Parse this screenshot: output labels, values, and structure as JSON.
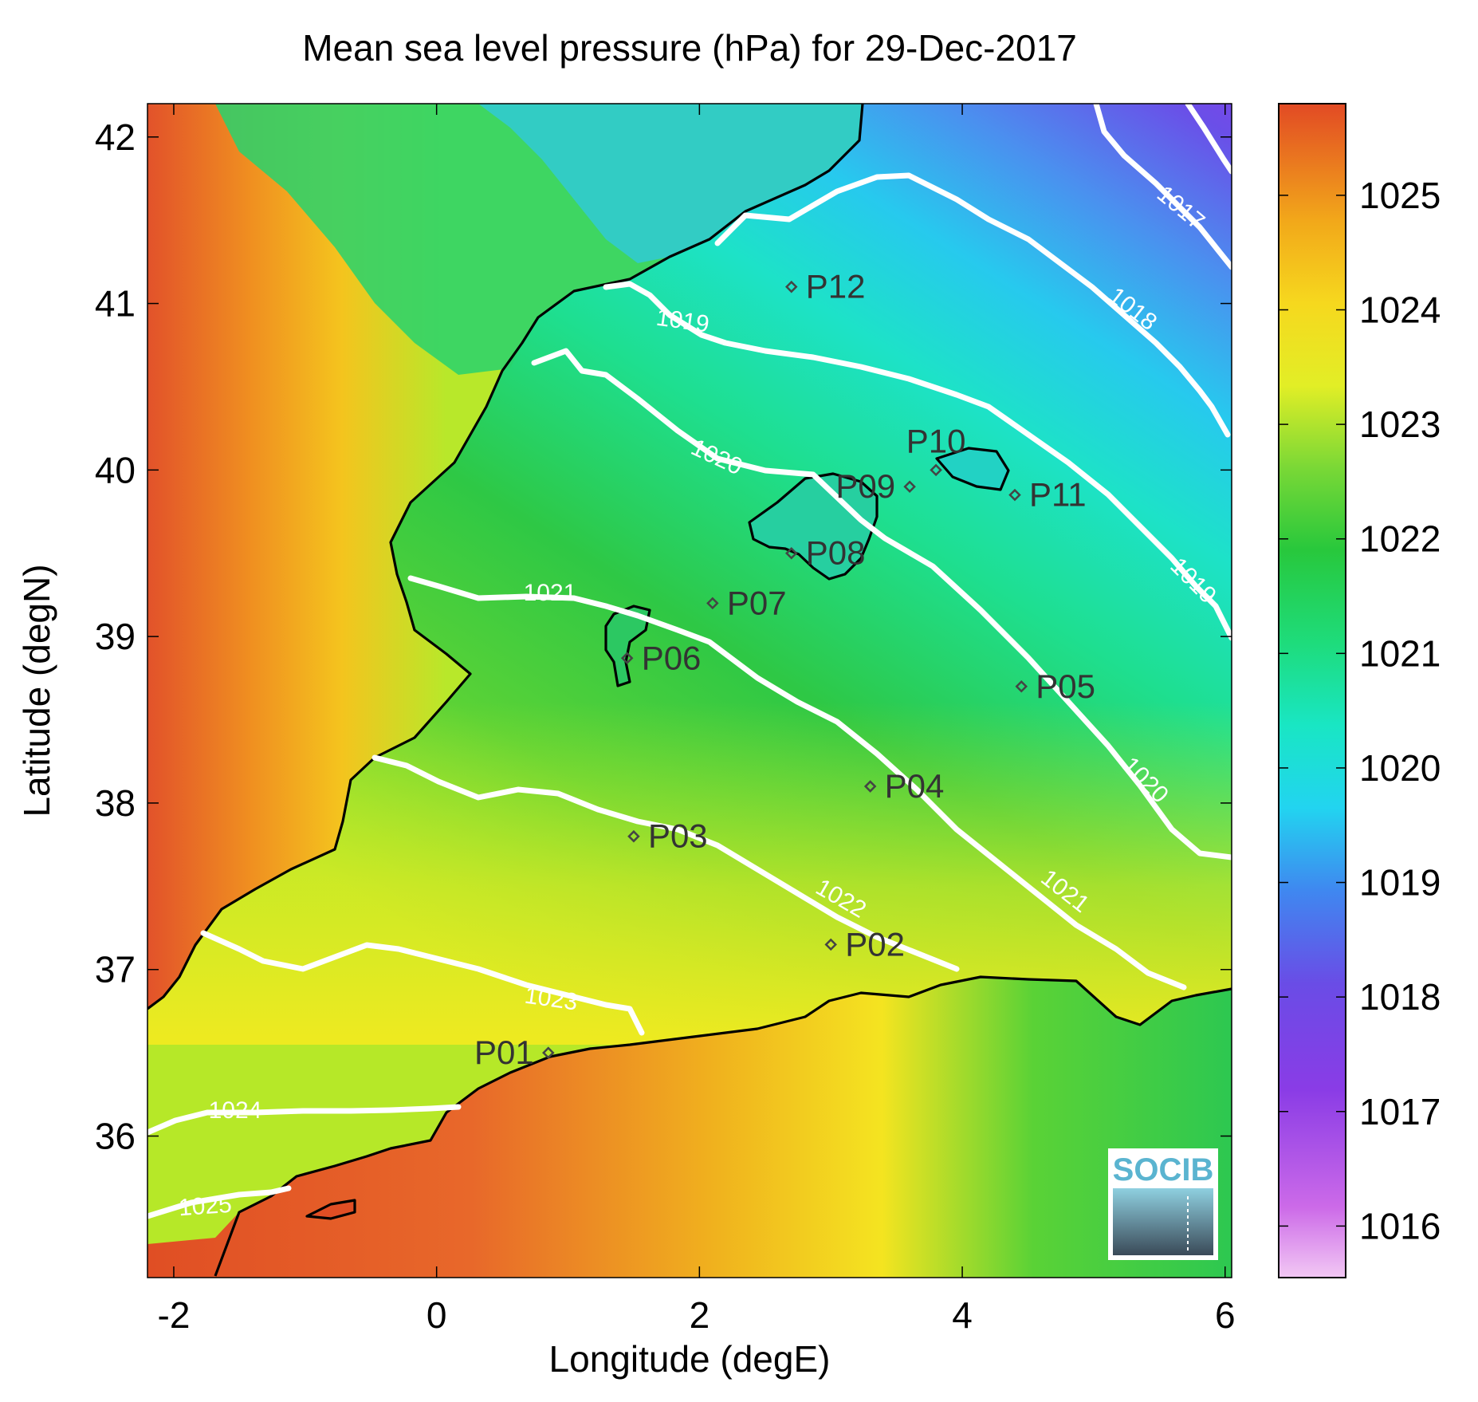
{
  "title": "Mean sea level pressure (hPa) for 29-Dec-2017",
  "xlabel": "Longitude (degE)",
  "ylabel": "Latitude (degN)",
  "x_ticks": [
    -2,
    0,
    2,
    4,
    6
  ],
  "y_ticks": [
    36,
    37,
    38,
    39,
    40,
    41,
    42
  ],
  "x_range": [
    -2.2,
    6.05
  ],
  "y_range": [
    35.15,
    42.2
  ],
  "colorbar": {
    "ticks": [
      1016,
      1017,
      1018,
      1019,
      1020,
      1021,
      1022,
      1023,
      1024,
      1025
    ],
    "range": [
      1015.55,
      1025.8
    ]
  },
  "points": [
    {
      "name": "P01",
      "lon": 0.85,
      "lat": 36.5,
      "label_side": "left"
    },
    {
      "name": "P02",
      "lon": 3.0,
      "lat": 37.15,
      "label_side": "right"
    },
    {
      "name": "P03",
      "lon": 1.5,
      "lat": 37.8,
      "label_side": "right"
    },
    {
      "name": "P04",
      "lon": 3.3,
      "lat": 38.1,
      "label_side": "right"
    },
    {
      "name": "P05",
      "lon": 4.45,
      "lat": 38.7,
      "label_side": "right"
    },
    {
      "name": "P06",
      "lon": 1.45,
      "lat": 38.87,
      "label_side": "right"
    },
    {
      "name": "P07",
      "lon": 2.1,
      "lat": 39.2,
      "label_side": "right"
    },
    {
      "name": "P08",
      "lon": 2.7,
      "lat": 39.5,
      "label_side": "right"
    },
    {
      "name": "P09",
      "lon": 3.6,
      "lat": 39.9,
      "label_side": "left"
    },
    {
      "name": "P10",
      "lon": 3.8,
      "lat": 40.0,
      "label_side": "above"
    },
    {
      "name": "P11",
      "lon": 4.4,
      "lat": 39.85,
      "label_side": "right"
    },
    {
      "name": "P12",
      "lon": 2.7,
      "lat": 41.1,
      "label_side": "right"
    }
  ],
  "contour_labels": [
    "1017",
    "1018",
    "1019",
    "1019",
    "1020",
    "1020",
    "1021",
    "1021",
    "1022",
    "1023",
    "1024",
    "1025"
  ],
  "logo": {
    "text": "SOCIB"
  },
  "colors": {
    "coastline": "#000000",
    "contour": "#ffffff",
    "point": "#444444"
  }
}
